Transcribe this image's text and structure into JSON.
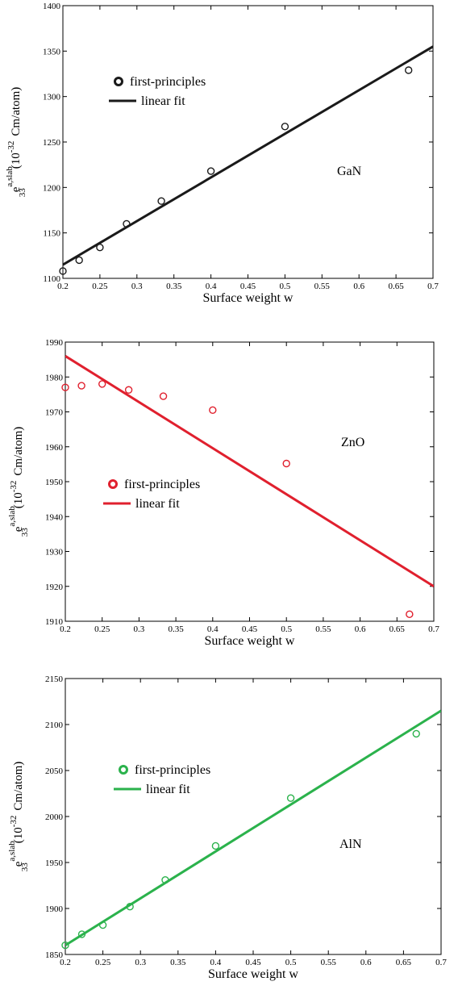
{
  "chart_data": [
    {
      "type": "scatter",
      "material": "GaN",
      "color": "#1a1a1a",
      "xlabel": "Surface weight w",
      "ylabel": {
        "base": "e",
        "sub": "33",
        "sup": "a,slab",
        "unit_open": "(10",
        "unit_exp": "-32",
        "unit_rest": "Cm/atom)"
      },
      "xlim": [
        0.2,
        0.7
      ],
      "ylim": [
        1100,
        1400
      ],
      "xticks": [
        "0.2",
        "0.25",
        "0.3",
        "0.35",
        "0.4",
        "0.45",
        "0.5",
        "0.55",
        "0.6",
        "0.65",
        "0.7"
      ],
      "yticks": [
        "1100",
        "1150",
        "1200",
        "1250",
        "1300",
        "1350",
        "1400"
      ],
      "legend": {
        "points": "first-principles",
        "line": "linear fit"
      },
      "series": [
        {
          "name": "first-principles",
          "kind": "points",
          "x": [
            0.2,
            0.222,
            0.25,
            0.286,
            0.333,
            0.4,
            0.5,
            0.667
          ],
          "y": [
            1108,
            1120,
            1134,
            1160,
            1185,
            1218,
            1267,
            1329
          ]
        },
        {
          "name": "linear fit",
          "kind": "line",
          "x": [
            0.2,
            0.7
          ],
          "y": [
            1115,
            1355
          ]
        }
      ]
    },
    {
      "type": "scatter",
      "material": "ZnO",
      "color": "#e0202e",
      "xlabel": "Surface weight w",
      "ylabel": {
        "base": "e",
        "sub": "33",
        "sup": "a,slab",
        "unit_open": "(10",
        "unit_exp": "-32",
        "unit_rest": "Cm/atom)"
      },
      "xlim": [
        0.2,
        0.7
      ],
      "ylim": [
        1910,
        1990
      ],
      "xticks": [
        "0.2",
        "0.25",
        "0.3",
        "0.35",
        "0.4",
        "0.45",
        "0.5",
        "0.55",
        "0.6",
        "0.65",
        "0.7"
      ],
      "yticks": [
        "1910",
        "1920",
        "1930",
        "1940",
        "1950",
        "1960",
        "1970",
        "1980",
        "1990"
      ],
      "legend": {
        "points": "first-principles",
        "line": "linear fit"
      },
      "series": [
        {
          "name": "first-principles",
          "kind": "points",
          "x": [
            0.2,
            0.222,
            0.25,
            0.286,
            0.333,
            0.4,
            0.5,
            0.667
          ],
          "y": [
            1977,
            1977.5,
            1978,
            1976.3,
            1974.5,
            1970.5,
            1955.2,
            1912
          ]
        },
        {
          "name": "linear fit",
          "kind": "line",
          "x": [
            0.2,
            0.7
          ],
          "y": [
            1986,
            1920
          ]
        }
      ]
    },
    {
      "type": "scatter",
      "material": "AlN",
      "color": "#2bb24c",
      "xlabel": "Surface weight w",
      "ylabel": {
        "base": "e",
        "sub": "33",
        "sup": "a,slab",
        "unit_open": "(10",
        "unit_exp": "-32",
        "unit_rest": "Cm/atom)"
      },
      "xlim": [
        0.2,
        0.7
      ],
      "ylim": [
        1850,
        2150
      ],
      "xticks": [
        "0.2",
        "0.25",
        "0.3",
        "0.35",
        "0.4",
        "0.45",
        "0.5",
        "0.55",
        "0.6",
        "0.65",
        "0.7"
      ],
      "yticks": [
        "1850",
        "1900",
        "1950",
        "2000",
        "2050",
        "2100",
        "2150"
      ],
      "legend": {
        "points": "first-principles",
        "line": "linear fit"
      },
      "series": [
        {
          "name": "first-principles",
          "kind": "points",
          "x": [
            0.2,
            0.222,
            0.25,
            0.286,
            0.333,
            0.4,
            0.5,
            0.667
          ],
          "y": [
            1860,
            1872,
            1882,
            1902,
            1931,
            1968,
            2020,
            2090
          ]
        },
        {
          "name": "linear fit",
          "kind": "line",
          "x": [
            0.2,
            0.7
          ],
          "y": [
            1860,
            2115
          ]
        }
      ]
    }
  ]
}
